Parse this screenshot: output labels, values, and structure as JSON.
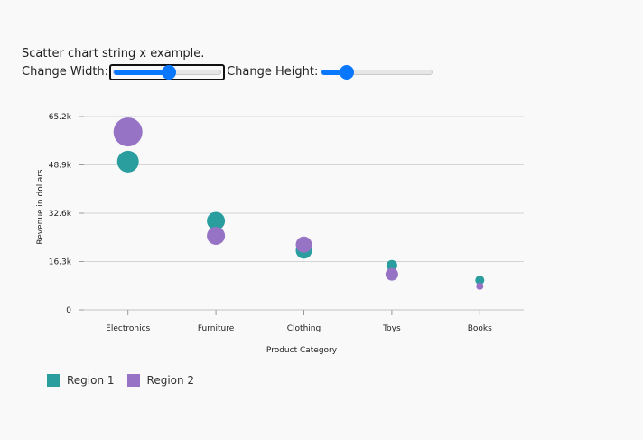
{
  "header": {
    "caption": "Scatter chart string x example.",
    "width_label": "Change Width:",
    "height_label": "Change Height:"
  },
  "sliders": {
    "width": {
      "min": 0,
      "max": 100,
      "value": 52
    },
    "height": {
      "min": 0,
      "max": 100,
      "value": 23
    }
  },
  "colors": {
    "region1": "#2a9d9f",
    "region2": "#9673c4",
    "accent": "#0a77ff"
  },
  "chart_data": {
    "type": "scatter",
    "title": "",
    "xlabel": "Product Category",
    "ylabel": "Revenue in dollars",
    "categories": [
      "Electronics",
      "Furniture",
      "Clothing",
      "Toys",
      "Books"
    ],
    "yticks": [
      "0",
      "16.3k",
      "32.6k",
      "48.9k",
      "65.2k"
    ],
    "ylim": [
      0,
      65200
    ],
    "grid": true,
    "legend_position": "bottom-left",
    "series": [
      {
        "name": "Region 1",
        "values": [
          50000,
          30000,
          20000,
          15000,
          10000
        ],
        "sizes": [
          12,
          10,
          9,
          6,
          5
        ]
      },
      {
        "name": "Region 2",
        "values": [
          60000,
          25000,
          22000,
          12000,
          8000
        ],
        "sizes": [
          16,
          10,
          9,
          7,
          4
        ]
      }
    ]
  }
}
